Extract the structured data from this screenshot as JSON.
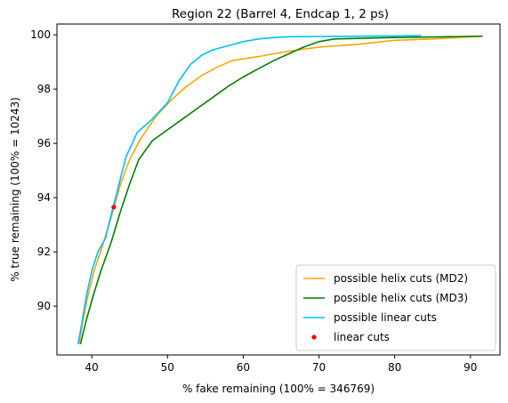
{
  "chart_data": {
    "type": "line",
    "title": "Region 22 (Barrel 4, Endcap 1, 2 ps)",
    "xlabel": "% fake remaining (100% = 346769)",
    "ylabel": "% true remaining (100% = 10243)",
    "xlim": [
      35.4,
      93.9
    ],
    "ylim": [
      88.2,
      100.4
    ],
    "xticks": [
      40,
      50,
      60,
      70,
      80,
      90
    ],
    "yticks": [
      90,
      92,
      94,
      96,
      98,
      100
    ],
    "grid": false,
    "legend_position": "bottom-right",
    "series": [
      {
        "name": "possible helix cuts (MD2)",
        "type": "line",
        "color": "#ffa500",
        "points": [
          [
            38.3,
            88.6
          ],
          [
            38.8,
            89.4
          ],
          [
            39.5,
            90.4
          ],
          [
            40.3,
            91.3
          ],
          [
            41.5,
            92.3
          ],
          [
            42.8,
            93.5
          ],
          [
            43.8,
            94.5
          ],
          [
            45.0,
            95.4
          ],
          [
            46.5,
            96.2
          ],
          [
            48.5,
            97.0
          ],
          [
            50.5,
            97.6
          ],
          [
            52.5,
            98.1
          ],
          [
            54.5,
            98.5
          ],
          [
            56.5,
            98.8
          ],
          [
            58.5,
            99.05
          ],
          [
            62.0,
            99.2
          ],
          [
            66.0,
            99.4
          ],
          [
            70.0,
            99.55
          ],
          [
            75.0,
            99.65
          ],
          [
            80.0,
            99.8
          ],
          [
            85.0,
            99.85
          ],
          [
            90.0,
            99.93
          ],
          [
            91.6,
            99.95
          ]
        ]
      },
      {
        "name": "possible helix cuts (MD3)",
        "type": "line",
        "color": "#008000",
        "points": [
          [
            38.5,
            88.6
          ],
          [
            39.2,
            89.4
          ],
          [
            40.2,
            90.4
          ],
          [
            41.2,
            91.3
          ],
          [
            42.5,
            92.3
          ],
          [
            43.8,
            93.5
          ],
          [
            45.0,
            94.5
          ],
          [
            46.2,
            95.4
          ],
          [
            48.0,
            96.1
          ],
          [
            50.0,
            96.5
          ],
          [
            52.0,
            96.9
          ],
          [
            54.0,
            97.3
          ],
          [
            56.0,
            97.7
          ],
          [
            58.0,
            98.1
          ],
          [
            60.0,
            98.45
          ],
          [
            62.0,
            98.75
          ],
          [
            64.0,
            99.05
          ],
          [
            66.0,
            99.3
          ],
          [
            68.0,
            99.55
          ],
          [
            70.0,
            99.75
          ],
          [
            72.0,
            99.85
          ],
          [
            76.0,
            99.88
          ],
          [
            80.0,
            99.9
          ],
          [
            85.0,
            99.92
          ],
          [
            91.6,
            99.95
          ]
        ]
      },
      {
        "name": "possible linear cuts",
        "type": "line",
        "color": "#00bfff",
        "points": [
          [
            38.2,
            88.6
          ],
          [
            38.7,
            89.4
          ],
          [
            39.3,
            90.4
          ],
          [
            40.0,
            91.3
          ],
          [
            40.8,
            92.0
          ],
          [
            41.8,
            92.5
          ],
          [
            42.5,
            93.3
          ],
          [
            43.5,
            94.4
          ],
          [
            44.5,
            95.5
          ],
          [
            46.0,
            96.4
          ],
          [
            48.0,
            96.9
          ],
          [
            50.0,
            97.5
          ],
          [
            51.5,
            98.3
          ],
          [
            53.0,
            98.9
          ],
          [
            54.5,
            99.25
          ],
          [
            56.0,
            99.45
          ],
          [
            58.0,
            99.6
          ],
          [
            60.0,
            99.75
          ],
          [
            62.0,
            99.85
          ],
          [
            64.0,
            99.9
          ],
          [
            66.0,
            99.93
          ],
          [
            70.0,
            99.94
          ],
          [
            75.0,
            99.95
          ],
          [
            80.0,
            99.96
          ],
          [
            83.5,
            99.97
          ]
        ]
      },
      {
        "name": "linear cuts",
        "type": "scatter",
        "color": "#ff0000",
        "points": [
          [
            42.9,
            93.65
          ]
        ]
      }
    ]
  }
}
